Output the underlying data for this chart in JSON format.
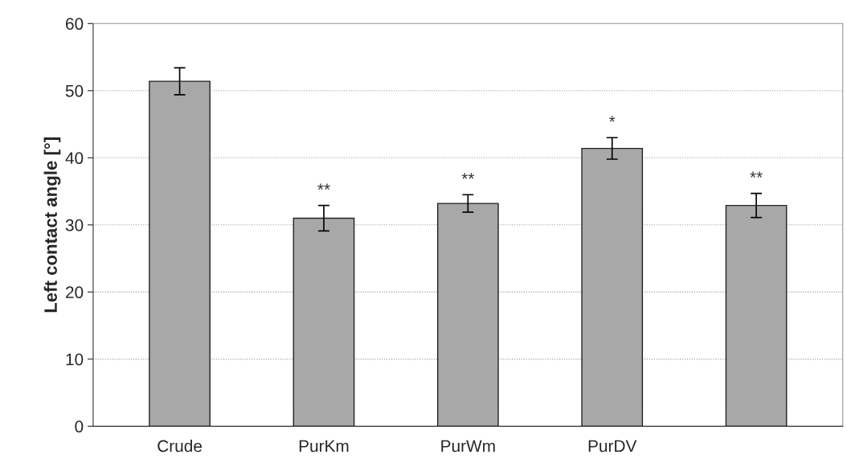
{
  "chart_data": {
    "type": "bar",
    "ylabel": "Left contact angle [°]",
    "categories": [
      "Crude",
      "PurKm",
      "PurWm",
      "PurDV",
      null
    ],
    "values": [
      51.4,
      31.0,
      33.2,
      41.4,
      32.9
    ],
    "errors": [
      2.0,
      1.9,
      1.3,
      1.6,
      1.8
    ],
    "value_labels": [
      null,
      "**",
      "**",
      "*",
      "**"
    ],
    "color": "#a8a8a8",
    "ylim": [
      0,
      60
    ],
    "yticks": [
      0,
      10,
      20,
      30,
      40,
      50,
      60
    ],
    "grid": "y"
  }
}
